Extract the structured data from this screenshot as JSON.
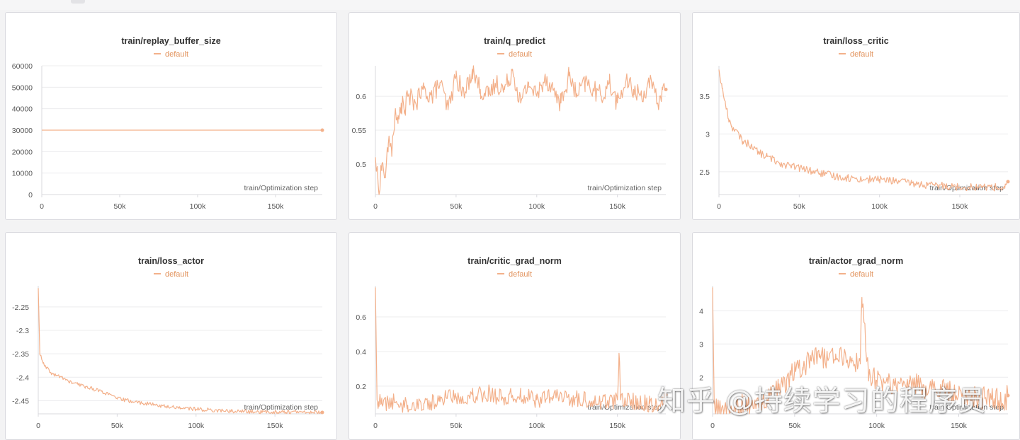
{
  "colors": {
    "series": "#f3b08a",
    "legend_text": "#e2945f",
    "grid": "#ececee",
    "axis": "#d9d9de"
  },
  "watermark": "知乎 @持续学习的程序员",
  "chart_data": [
    {
      "type": "line",
      "title": "train/replay_buffer_size",
      "legend": [
        "default"
      ],
      "xlabel": "train/Optimization step",
      "xlim": [
        0,
        180000
      ],
      "ylim": [
        0,
        60000
      ],
      "xticks": [
        0,
        50000,
        100000,
        150000
      ],
      "xtick_labels": [
        "0",
        "50k",
        "100k",
        "150k"
      ],
      "yticks": [
        0,
        10000,
        20000,
        30000,
        40000,
        50000,
        60000
      ],
      "ytick_labels": [
        "0",
        "10000",
        "20000",
        "30000",
        "40000",
        "50000",
        "60000"
      ],
      "series": [
        {
          "name": "default",
          "x": [
            0,
            180000
          ],
          "y": [
            30000,
            30000
          ],
          "end_marker": true
        }
      ]
    },
    {
      "type": "line",
      "title": "train/q_predict",
      "legend": [
        "default"
      ],
      "xlabel": "train/Optimization step",
      "xlim": [
        0,
        180000
      ],
      "ylim": [
        0.455,
        0.645
      ],
      "xticks": [
        0,
        50000,
        100000,
        150000
      ],
      "xtick_labels": [
        "0",
        "50k",
        "100k",
        "150k"
      ],
      "yticks": [
        0.5,
        0.55,
        0.6
      ],
      "ytick_labels": [
        "0.5",
        "0.55",
        "0.6"
      ],
      "series": [
        {
          "name": "default",
          "x": [
            0,
            2000,
            4000,
            6000,
            8000,
            10000,
            12000,
            14000,
            16000,
            18000,
            20000,
            25000,
            30000,
            35000,
            40000,
            45000,
            50000,
            55000,
            60000,
            65000,
            70000,
            75000,
            80000,
            85000,
            90000,
            95000,
            100000,
            105000,
            110000,
            115000,
            120000,
            125000,
            130000,
            135000,
            140000,
            145000,
            150000,
            155000,
            160000,
            165000,
            170000,
            175000,
            178000,
            180000
          ],
          "y": [
            0.51,
            0.46,
            0.5,
            0.48,
            0.53,
            0.52,
            0.57,
            0.56,
            0.59,
            0.58,
            0.6,
            0.59,
            0.61,
            0.6,
            0.62,
            0.58,
            0.63,
            0.6,
            0.64,
            0.61,
            0.6,
            0.62,
            0.61,
            0.64,
            0.59,
            0.62,
            0.6,
            0.63,
            0.61,
            0.59,
            0.63,
            0.6,
            0.62,
            0.61,
            0.6,
            0.62,
            0.59,
            0.62,
            0.61,
            0.6,
            0.62,
            0.59,
            0.61,
            0.61
          ],
          "noise": 0.015,
          "end_marker": true
        }
      ]
    },
    {
      "type": "line",
      "title": "train/loss_critic",
      "legend": [
        "default"
      ],
      "xlabel": "train/Optimization step",
      "xlim": [
        0,
        180000
      ],
      "ylim": [
        2.2,
        3.9
      ],
      "xticks": [
        0,
        50000,
        100000,
        150000
      ],
      "xtick_labels": [
        "0",
        "50k",
        "100k",
        "150k"
      ],
      "yticks": [
        2.5,
        3,
        3.5
      ],
      "ytick_labels": [
        "2.5",
        "3",
        "3.5"
      ],
      "series": [
        {
          "name": "default",
          "x": [
            0,
            2000,
            4000,
            6000,
            8000,
            10000,
            15000,
            20000,
            25000,
            30000,
            40000,
            50000,
            60000,
            70000,
            80000,
            90000,
            100000,
            110000,
            120000,
            130000,
            140000,
            150000,
            160000,
            170000,
            178000,
            180000
          ],
          "y": [
            3.85,
            3.6,
            3.4,
            3.2,
            3.1,
            3.05,
            2.9,
            2.85,
            2.75,
            2.7,
            2.6,
            2.55,
            2.5,
            2.45,
            2.42,
            2.4,
            2.4,
            2.38,
            2.35,
            2.32,
            2.32,
            2.3,
            2.3,
            2.3,
            2.28,
            2.37
          ],
          "noise": 0.05,
          "end_marker": true
        }
      ]
    },
    {
      "type": "line",
      "title": "train/loss_actor",
      "legend": [
        "default"
      ],
      "xlabel": "train/Optimization step",
      "xlim": [
        0,
        180000
      ],
      "ylim": [
        -2.478,
        -2.205
      ],
      "xticks": [
        0,
        50000,
        100000,
        150000
      ],
      "xtick_labels": [
        "0",
        "50k",
        "100k",
        "150k"
      ],
      "yticks": [
        -2.25,
        -2.3,
        -2.35,
        -2.4,
        -2.45
      ],
      "ytick_labels": [
        "-2.25",
        "-2.3",
        "-2.35",
        "-2.4",
        "-2.45"
      ],
      "series": [
        {
          "name": "default",
          "x": [
            0,
            1000,
            3000,
            5000,
            8000,
            10000,
            15000,
            20000,
            30000,
            40000,
            50000,
            60000,
            70000,
            80000,
            90000,
            100000,
            110000,
            120000,
            130000,
            140000,
            150000,
            160000,
            170000,
            180000
          ],
          "y": [
            -2.21,
            -2.35,
            -2.37,
            -2.38,
            -2.39,
            -2.395,
            -2.4,
            -2.41,
            -2.42,
            -2.43,
            -2.445,
            -2.452,
            -2.457,
            -2.462,
            -2.465,
            -2.468,
            -2.47,
            -2.472,
            -2.473,
            -2.474,
            -2.474,
            -2.474,
            -2.475,
            -2.475
          ],
          "noise": 0.004,
          "end_marker": true
        }
      ]
    },
    {
      "type": "line",
      "title": "train/critic_grad_norm",
      "legend": [
        "default"
      ],
      "xlabel": "train/Optimization step",
      "xlim": [
        0,
        180000
      ],
      "ylim": [
        0.04,
        0.78
      ],
      "xticks": [
        0,
        50000,
        100000,
        150000
      ],
      "xtick_labels": [
        "0",
        "50k",
        "100k",
        "150k"
      ],
      "yticks": [
        0.2,
        0.4,
        0.6
      ],
      "ytick_labels": [
        "0.2",
        "0.4",
        "0.6"
      ],
      "series": [
        {
          "name": "default",
          "x": [
            0,
            1000,
            2000,
            4000,
            10000,
            20000,
            30000,
            40000,
            45000,
            50000,
            60000,
            70000,
            80000,
            90000,
            100000,
            110000,
            120000,
            130000,
            140000,
            150000,
            151000,
            152000,
            160000,
            170000,
            178000,
            180000
          ],
          "y": [
            0.77,
            0.12,
            0.11,
            0.1,
            0.11,
            0.09,
            0.1,
            0.11,
            0.16,
            0.13,
            0.15,
            0.16,
            0.13,
            0.15,
            0.12,
            0.14,
            0.13,
            0.12,
            0.11,
            0.12,
            0.39,
            0.12,
            0.11,
            0.1,
            0.09,
            0.15
          ],
          "noise": 0.05,
          "end_marker": true
        }
      ]
    },
    {
      "type": "line",
      "title": "train/actor_grad_norm",
      "legend": [
        "default"
      ],
      "xlabel": "train/Optimization step",
      "xlim": [
        0,
        180000
      ],
      "ylim": [
        0.9,
        4.75
      ],
      "xticks": [
        0,
        50000,
        100000,
        150000
      ],
      "xtick_labels": [
        "0",
        "50k",
        "100k",
        "150k"
      ],
      "yticks": [
        2,
        3,
        4
      ],
      "ytick_labels": [
        "2",
        "3",
        "4"
      ],
      "series": [
        {
          "name": "default",
          "x": [
            0,
            1000,
            2000,
            10000,
            20000,
            30000,
            40000,
            45000,
            50000,
            55000,
            60000,
            65000,
            70000,
            75000,
            80000,
            85000,
            90000,
            91000,
            95000,
            100000,
            110000,
            120000,
            130000,
            140000,
            150000,
            160000,
            170000,
            178000,
            180000
          ],
          "y": [
            4.7,
            1.2,
            1.0,
            1.1,
            1.15,
            1.2,
            1.6,
            1.9,
            2.2,
            2.3,
            2.5,
            2.6,
            2.6,
            2.7,
            2.6,
            2.5,
            2.4,
            4.4,
            2.1,
            1.9,
            1.8,
            1.8,
            1.7,
            1.6,
            1.5,
            1.4,
            1.35,
            1.3,
            1.45
          ],
          "noise": 0.35,
          "end_marker": true
        }
      ]
    }
  ]
}
